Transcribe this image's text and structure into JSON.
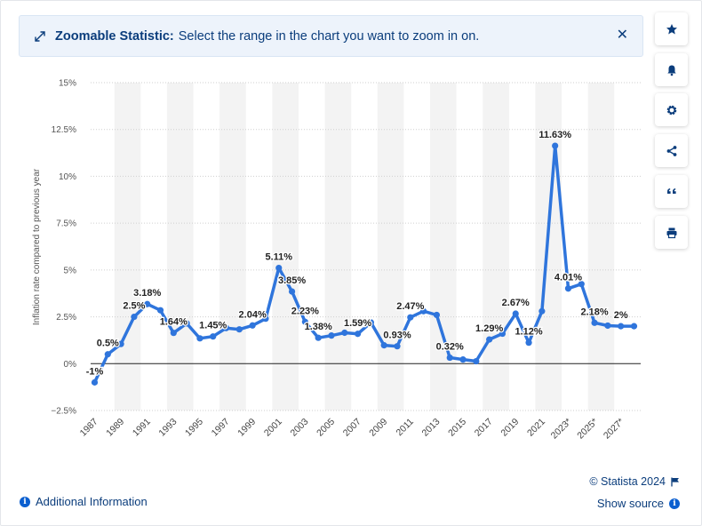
{
  "banner": {
    "title": "Zoomable Statistic:",
    "text": "Select the range in the chart you want to zoom in on.",
    "close_icon": "close-icon"
  },
  "sidebar": {
    "buttons": [
      {
        "name": "favorite-button",
        "icon": "star-icon"
      },
      {
        "name": "notification-button",
        "icon": "bell-icon"
      },
      {
        "name": "settings-button",
        "icon": "gear-icon"
      },
      {
        "name": "share-button",
        "icon": "share-icon"
      },
      {
        "name": "cite-button",
        "icon": "quote-icon"
      },
      {
        "name": "print-button",
        "icon": "printer-icon"
      }
    ]
  },
  "footer": {
    "additional_info": "Additional Information",
    "copyright": "© Statista 2024",
    "show_source": "Show source"
  },
  "colors": {
    "line": "#2f75dc",
    "text_dark": "#0b3d7c",
    "band": "#f3f3f3",
    "grid": "#cfcfcf"
  },
  "chart_data": {
    "type": "line",
    "ylabel": "Inflation rate compared to previous year",
    "ylim": [
      -2.5,
      15
    ],
    "yticks": [
      -2.5,
      0,
      2.5,
      5,
      7.5,
      10,
      12.5,
      15
    ],
    "ytick_labels": [
      "−2.5%",
      "0%",
      "2.5%",
      "5%",
      "7.5%",
      "10%",
      "12.5%",
      "15%"
    ],
    "x": [
      1987,
      1988,
      1989,
      1990,
      1991,
      1992,
      1993,
      1994,
      1995,
      1996,
      1997,
      1998,
      1999,
      2000,
      2001,
      2002,
      2003,
      2004,
      2005,
      2006,
      2007,
      2008,
      2009,
      2010,
      2011,
      2012,
      2013,
      2014,
      2015,
      2016,
      2017,
      2018,
      2019,
      2020,
      2021,
      2022,
      2023,
      2024,
      2025,
      2026,
      2027,
      2028
    ],
    "xtick_labels": [
      {
        "x": 1987,
        "label": "1987"
      },
      {
        "x": 1989,
        "label": "1989"
      },
      {
        "x": 1991,
        "label": "1991"
      },
      {
        "x": 1993,
        "label": "1993"
      },
      {
        "x": 1995,
        "label": "1995"
      },
      {
        "x": 1997,
        "label": "1997"
      },
      {
        "x": 1999,
        "label": "1999"
      },
      {
        "x": 2001,
        "label": "2001"
      },
      {
        "x": 2003,
        "label": "2003"
      },
      {
        "x": 2005,
        "label": "2005"
      },
      {
        "x": 2007,
        "label": "2007"
      },
      {
        "x": 2009,
        "label": "2009"
      },
      {
        "x": 2011,
        "label": "2011"
      },
      {
        "x": 2013,
        "label": "2013"
      },
      {
        "x": 2015,
        "label": "2015"
      },
      {
        "x": 2017,
        "label": "2017"
      },
      {
        "x": 2019,
        "label": "2019"
      },
      {
        "x": 2021,
        "label": "2021"
      },
      {
        "x": 2023,
        "label": "2023*"
      },
      {
        "x": 2025,
        "label": "2025*"
      },
      {
        "x": 2027,
        "label": "2027*"
      }
    ],
    "series": [
      {
        "name": "Inflation rate",
        "values": [
          -1,
          0.5,
          1.05,
          2.5,
          3.18,
          2.85,
          1.64,
          2.15,
          1.35,
          1.45,
          1.9,
          1.83,
          2.04,
          2.4,
          5.11,
          3.85,
          2.23,
          1.38,
          1.5,
          1.65,
          1.59,
          2.2,
          0.98,
          0.93,
          2.47,
          2.8,
          2.6,
          0.32,
          0.22,
          0.13,
          1.29,
          1.6,
          2.67,
          1.12,
          2.8,
          11.63,
          4.01,
          4.25,
          2.18,
          2.03,
          2.0,
          2.0
        ]
      }
    ],
    "data_labels": [
      {
        "x": 1987,
        "value": -1,
        "label": "-1%"
      },
      {
        "x": 1988,
        "value": 0.5,
        "label": "0.5%"
      },
      {
        "x": 1990,
        "value": 2.5,
        "label": "2.5%"
      },
      {
        "x": 1991,
        "value": 3.18,
        "label": "3.18%"
      },
      {
        "x": 1993,
        "value": 1.64,
        "label": "1.64%"
      },
      {
        "x": 1996,
        "value": 1.45,
        "label": "1.45%"
      },
      {
        "x": 1999,
        "value": 2.04,
        "label": "2.04%"
      },
      {
        "x": 2001,
        "value": 5.11,
        "label": "5.11%"
      },
      {
        "x": 2002,
        "value": 3.85,
        "label": "3.85%"
      },
      {
        "x": 2003,
        "value": 2.23,
        "label": "2.23%"
      },
      {
        "x": 2004,
        "value": 1.38,
        "label": "1.38%"
      },
      {
        "x": 2007,
        "value": 1.59,
        "label": "1.59%"
      },
      {
        "x": 2010,
        "value": 0.93,
        "label": "0.93%"
      },
      {
        "x": 2011,
        "value": 2.47,
        "label": "2.47%"
      },
      {
        "x": 2014,
        "value": 0.32,
        "label": "0.32%"
      },
      {
        "x": 2017,
        "value": 1.29,
        "label": "1.29%"
      },
      {
        "x": 2019,
        "value": 2.67,
        "label": "2.67%"
      },
      {
        "x": 2020,
        "value": 1.12,
        "label": "1.12%"
      },
      {
        "x": 2022,
        "value": 11.63,
        "label": "11.63%"
      },
      {
        "x": 2023,
        "value": 4.01,
        "label": "4.01%"
      },
      {
        "x": 2025,
        "value": 2.18,
        "label": "2.18%"
      },
      {
        "x": 2027,
        "value": 2.0,
        "label": "2%"
      }
    ]
  }
}
